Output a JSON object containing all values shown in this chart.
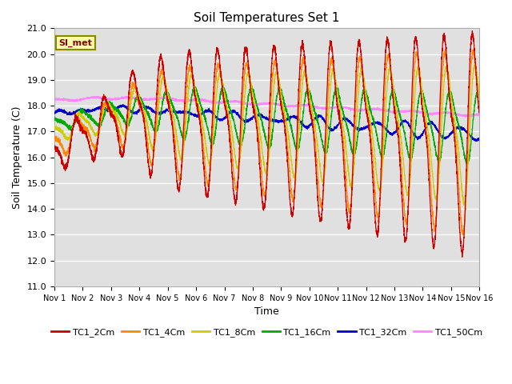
{
  "title": "Soil Temperatures Set 1",
  "xlabel": "Time",
  "ylabel": "Soil Temperature (C)",
  "ylim": [
    11.0,
    21.0
  ],
  "yticks": [
    11.0,
    12.0,
    13.0,
    14.0,
    15.0,
    16.0,
    17.0,
    18.0,
    19.0,
    20.0,
    21.0
  ],
  "xtick_labels": [
    "Nov 1",
    "Nov 2",
    "Nov 3",
    "Nov 4",
    "Nov 5",
    "Nov 6",
    "Nov 7",
    "Nov 8",
    "Nov 9",
    "Nov 10",
    "Nov 11",
    "Nov 12",
    "Nov 13",
    "Nov 14",
    "Nov 15",
    "Nov 16"
  ],
  "colors": {
    "TC1_2Cm": "#cc0000",
    "TC1_4Cm": "#ff8800",
    "TC1_8Cm": "#cccc00",
    "TC1_16Cm": "#00aa00",
    "TC1_32Cm": "#0000cc",
    "TC1_50Cm": "#ff88ff"
  },
  "legend_labels": [
    "TC1_2Cm",
    "TC1_4Cm",
    "TC1_8Cm",
    "TC1_16Cm",
    "TC1_32Cm",
    "TC1_50Cm"
  ],
  "si_met_label": "SI_met",
  "background_color": "#e0e0e0",
  "fig_background": "#ffffff",
  "n_points": 4320,
  "duration_days": 15
}
